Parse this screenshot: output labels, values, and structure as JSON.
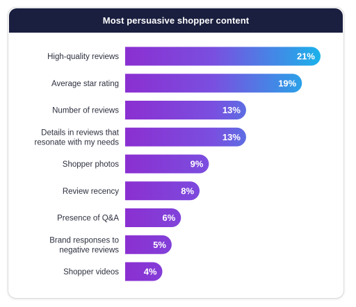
{
  "chart_data": {
    "type": "bar",
    "orientation": "horizontal",
    "title": "Most persuasive shopper content",
    "categories": [
      [
        "High-quality reviews"
      ],
      [
        "Average star rating"
      ],
      [
        "Number of reviews"
      ],
      [
        "Details in reviews that",
        "resonate with my needs"
      ],
      [
        "Shopper photos"
      ],
      [
        "Review recency"
      ],
      [
        "Presence of Q&A"
      ],
      [
        "Brand responses to",
        "negative reviews"
      ],
      [
        "Shopper videos"
      ]
    ],
    "values": [
      21,
      19,
      13,
      13,
      9,
      8,
      6,
      5,
      4
    ],
    "value_labels": [
      "21%",
      "19%",
      "13%",
      "13%",
      "9%",
      "8%",
      "6%",
      "5%",
      "4%"
    ],
    "xlim": [
      0,
      21
    ],
    "colors": {
      "header_bg": "#1a1f3f",
      "bar_left": "#8b2fd1",
      "bar_right": "#1ab2ea"
    }
  }
}
